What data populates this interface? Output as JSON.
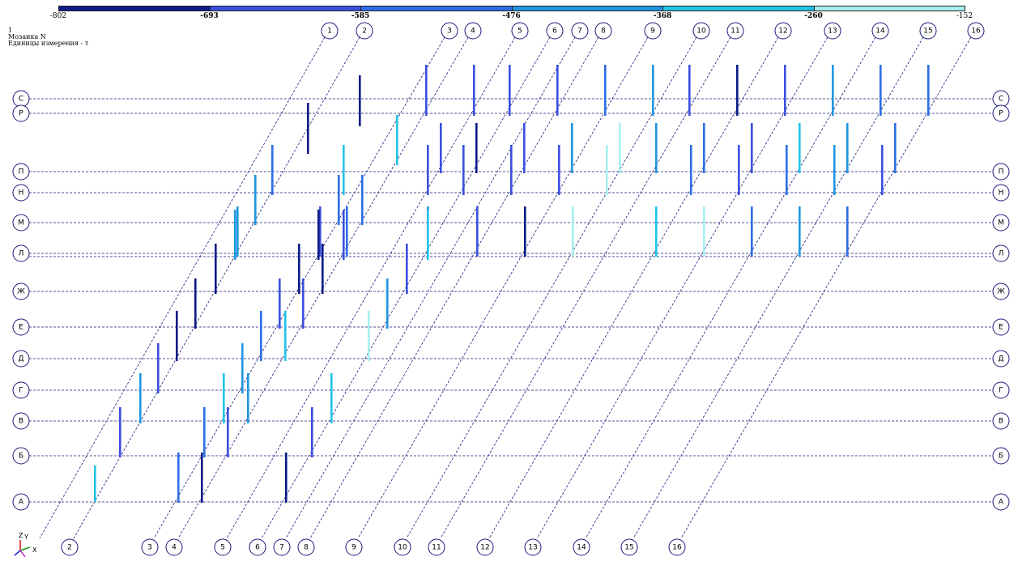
{
  "header": {
    "line1": "1",
    "line2": "Мозаика N",
    "line3": "Единицы измерения - т"
  },
  "scale": {
    "ticks": [
      "-802",
      "-693",
      "-585",
      "-476",
      "-368",
      "-260",
      "-152"
    ],
    "colors": [
      "#0d1a87",
      "#3a4fe0",
      "#2d6ee6",
      "#1f96e0",
      "#21c4e6",
      "#a6f0ee"
    ]
  },
  "axes": {
    "rows": [
      "С",
      "Р",
      "П",
      "Н",
      "М",
      "Л",
      "Ж",
      "Е",
      "Д",
      "Г",
      "В",
      "Б",
      "А"
    ],
    "columns": [
      "1",
      "2",
      "3",
      "4",
      "5",
      "6",
      "7",
      "8",
      "9",
      "10",
      "11",
      "12",
      "13",
      "14",
      "15",
      "16"
    ],
    "bottom_columns": [
      "2",
      "3",
      "4",
      "5",
      "6",
      "7",
      "8",
      "9",
      "10",
      "11",
      "12",
      "13",
      "14",
      "15",
      "16"
    ]
  },
  "colors": {
    "grid": "#1a1a7a",
    "bubble": "#1a1a7a"
  },
  "icons": {
    "triad": "xyz-axes-icon"
  },
  "triad_labels": {
    "z": "Z",
    "y": "Y",
    "x": "X"
  }
}
